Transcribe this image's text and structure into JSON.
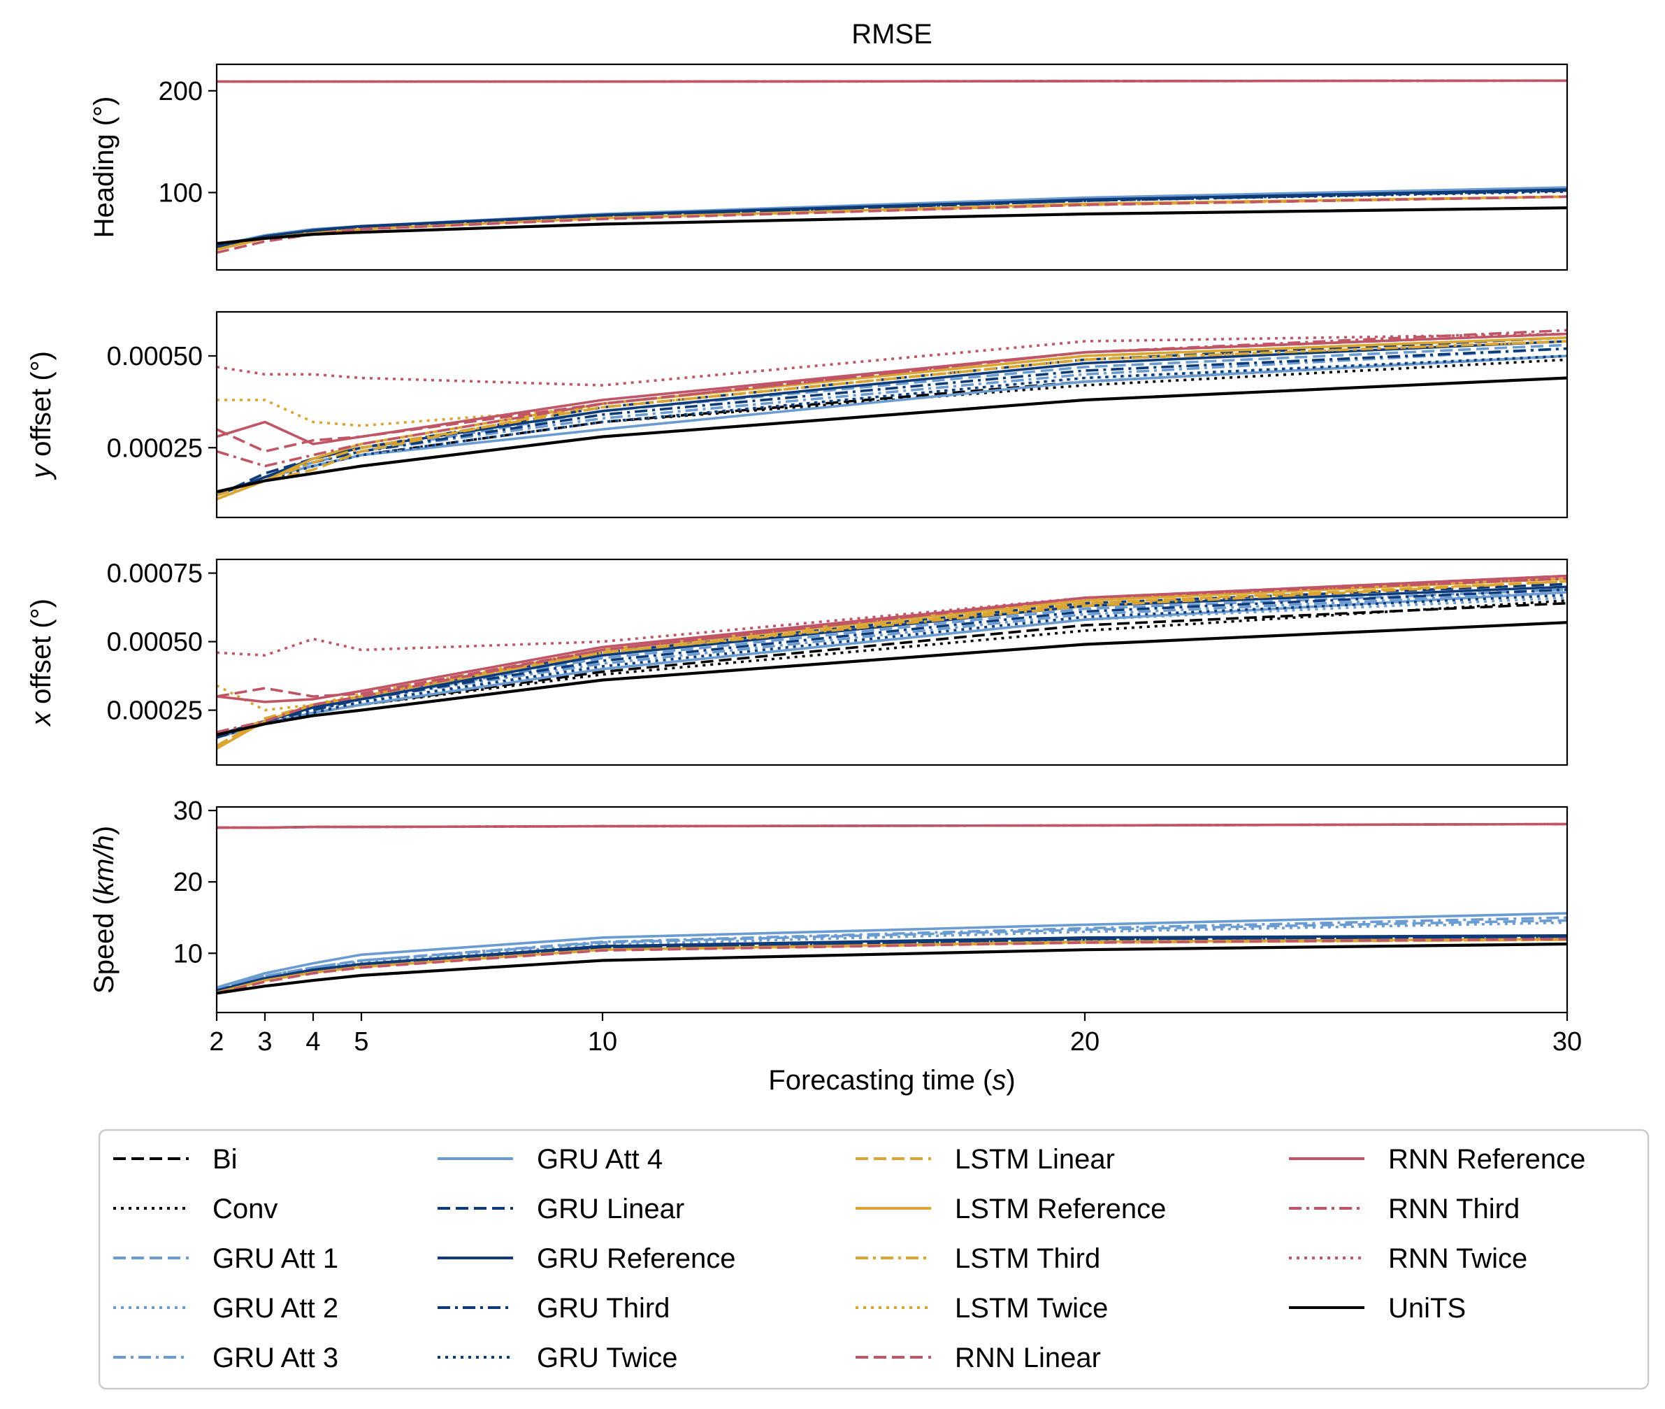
{
  "colors": {
    "black": "#000000",
    "gru_light": "#6a9bd1",
    "gru_dark": "#0e3a78",
    "lstm": "#dba532",
    "rnn": "#c05565"
  },
  "chart_data": {
    "type": "line",
    "title": "RMSE",
    "xlabel": "Forecasting time",
    "xlabel_unit": "s",
    "xlim": [
      2,
      30
    ],
    "xticks": [
      "2",
      "3",
      "4",
      "5",
      "10",
      "20",
      "30"
    ],
    "x": [
      2,
      3,
      4,
      5,
      10,
      20,
      30
    ],
    "legend_position": "bottom",
    "legend": [
      {
        "name": "Bi",
        "color": "#000000",
        "dash": "dashed"
      },
      {
        "name": "Conv",
        "color": "#000000",
        "dash": "dotted"
      },
      {
        "name": "GRU Att 1",
        "color": "#6a9bd1",
        "dash": "dashed"
      },
      {
        "name": "GRU Att 2",
        "color": "#6a9bd1",
        "dash": "dotted"
      },
      {
        "name": "GRU Att 3",
        "color": "#6a9bd1",
        "dash": "dashdot"
      },
      {
        "name": "GRU Att 4",
        "color": "#6a9bd1",
        "dash": "solid"
      },
      {
        "name": "GRU Linear",
        "color": "#0e3a78",
        "dash": "dashed"
      },
      {
        "name": "GRU Reference",
        "color": "#0e3a78",
        "dash": "solid"
      },
      {
        "name": "GRU Third",
        "color": "#0e3a78",
        "dash": "dashdot"
      },
      {
        "name": "GRU Twice",
        "color": "#0e3a78",
        "dash": "dotted"
      },
      {
        "name": "LSTM Linear",
        "color": "#dba532",
        "dash": "dashed"
      },
      {
        "name": "LSTM Reference",
        "color": "#dba532",
        "dash": "solid"
      },
      {
        "name": "LSTM Third",
        "color": "#dba532",
        "dash": "dashdot"
      },
      {
        "name": "LSTM Twice",
        "color": "#dba532",
        "dash": "dotted"
      },
      {
        "name": "RNN Linear",
        "color": "#c05565",
        "dash": "dashed"
      },
      {
        "name": "RNN Reference",
        "color": "#c05565",
        "dash": "solid"
      },
      {
        "name": "RNN Third",
        "color": "#c05565",
        "dash": "dashdot"
      },
      {
        "name": "RNN Twice",
        "color": "#c05565",
        "dash": "dotted"
      },
      {
        "name": "UniTS",
        "color": "#000000",
        "dash": "solid"
      }
    ],
    "panels": [
      {
        "ylabel": "Heading (°)",
        "ylim": [
          24,
          226
        ],
        "yticks": [
          {
            "v": 100,
            "label": "100"
          },
          {
            "v": 200,
            "label": "200"
          }
        ],
        "series": {
          "Bi": [
            45,
            55,
            61,
            64,
            75,
            88,
            96
          ],
          "Conv": [
            45,
            55,
            61,
            64,
            75,
            88,
            96
          ],
          "GRU Att 1": [
            47,
            57,
            63,
            66,
            77,
            92,
            102
          ],
          "GRU Att 2": [
            47,
            57,
            63,
            66,
            77,
            92,
            101
          ],
          "GRU Att 3": [
            47,
            57,
            63,
            66,
            77,
            92,
            102
          ],
          "GRU Att 4": [
            48,
            58,
            64,
            67,
            79,
            95,
            105
          ],
          "GRU Linear": [
            46,
            57,
            62,
            66,
            77,
            92,
            102
          ],
          "GRU Reference": [
            47,
            57,
            63,
            67,
            78,
            93,
            103
          ],
          "GRU Third": [
            46,
            57,
            62,
            66,
            77,
            92,
            102
          ],
          "GRU Twice": [
            46,
            56,
            62,
            66,
            77,
            92,
            101
          ],
          "LSTM Linear": [
            44,
            55,
            60,
            64,
            75,
            88,
            96
          ],
          "LSTM Reference": [
            44,
            55,
            60,
            64,
            75,
            89,
            96
          ],
          "LSTM Third": [
            44,
            55,
            60,
            64,
            75,
            88,
            96
          ],
          "LSTM Twice": [
            44,
            55,
            60,
            64,
            75,
            88,
            96
          ],
          "RNN Linear": [
            41,
            52,
            59,
            64,
            74,
            88,
            96
          ],
          "RNN Reference": [
            209,
            209,
            209,
            209,
            209,
            209.5,
            210
          ],
          "RNN Third": [
            209,
            209,
            209,
            209,
            209,
            209.5,
            210
          ],
          "RNN Twice": [
            209,
            209,
            209,
            209,
            209,
            209.5,
            210
          ],
          "UniTS": [
            50,
            55,
            59,
            61,
            69,
            79,
            85
          ]
        }
      },
      {
        "ylabel": "y offset (°)",
        "ylabel_italic_prefix": "y",
        "ylim": [
          6e-05,
          0.00062
        ],
        "yticks": [
          {
            "v": 0.00025,
            "label": "0.00025"
          },
          {
            "v": 0.0005,
            "label": "0.00050"
          }
        ],
        "series": {
          "Bi": [
            0.00012,
            0.00017,
            0.0002,
            0.00023,
            0.00032,
            0.00043,
            0.0005
          ],
          "Conv": [
            0.00012,
            0.00017,
            0.0002,
            0.00023,
            0.00032,
            0.00042,
            0.00049
          ],
          "GRU Att 1": [
            0.00012,
            0.00017,
            0.00021,
            0.00024,
            0.00035,
            0.00047,
            0.00053
          ],
          "GRU Att 2": [
            0.00012,
            0.00017,
            0.0002,
            0.00023,
            0.00032,
            0.00044,
            0.0005
          ],
          "GRU Att 3": [
            0.00012,
            0.00017,
            0.00021,
            0.00024,
            0.00033,
            0.00045,
            0.00052
          ],
          "GRU Att 4": [
            0.00012,
            0.00017,
            0.0002,
            0.00023,
            0.0003,
            0.00043,
            0.0005
          ],
          "GRU Linear": [
            0.00012,
            0.00018,
            0.00022,
            0.00025,
            0.00036,
            0.00049,
            0.00055
          ],
          "GRU Reference": [
            0.00012,
            0.00017,
            0.00022,
            0.00025,
            0.00035,
            0.00048,
            0.00054
          ],
          "GRU Third": [
            0.00012,
            0.00017,
            0.00021,
            0.00024,
            0.00034,
            0.00046,
            0.00052
          ],
          "GRU Twice": [
            0.00011,
            0.00016,
            0.0002,
            0.00023,
            0.00032,
            0.00044,
            0.0005
          ],
          "LSTM Linear": [
            0.00013,
            0.00016,
            0.00019,
            0.00024,
            0.00037,
            0.0005,
            0.00055
          ],
          "LSTM Reference": [
            0.00011,
            0.00016,
            0.00022,
            0.00026,
            0.00037,
            0.0005,
            0.00055
          ],
          "LSTM Third": [
            0.00012,
            0.00016,
            0.00021,
            0.00025,
            0.00036,
            0.00049,
            0.00054
          ],
          "LSTM Twice": [
            0.00038,
            0.00038,
            0.00032,
            0.00031,
            0.00036,
            0.00049,
            0.00054
          ],
          "RNN Linear": [
            0.0003,
            0.00024,
            0.00027,
            0.00028,
            0.00037,
            0.00051,
            0.00056
          ],
          "RNN Reference": [
            0.00028,
            0.00032,
            0.00026,
            0.00028,
            0.00038,
            0.00051,
            0.00056
          ],
          "RNN Third": [
            0.00024,
            0.0002,
            0.00023,
            0.00026,
            0.00037,
            0.00051,
            0.00057
          ],
          "RNN Twice": [
            0.00047,
            0.00045,
            0.00045,
            0.00044,
            0.00042,
            0.00054,
            0.00056
          ],
          "UniTS": [
            0.00013,
            0.00016,
            0.00018,
            0.0002,
            0.00028,
            0.00038,
            0.00044
          ]
        }
      },
      {
        "ylabel": "x offset (°)",
        "ylabel_italic_prefix": "x",
        "ylim": [
          5e-05,
          0.0008
        ],
        "yticks": [
          {
            "v": 0.00025,
            "label": "0.00025"
          },
          {
            "v": 0.0005,
            "label": "0.00050"
          },
          {
            "v": 0.00075,
            "label": "0.00075"
          }
        ],
        "series": {
          "Bi": [
            0.00015,
            0.0002,
            0.00024,
            0.00027,
            0.00039,
            0.00056,
            0.00064
          ],
          "Conv": [
            0.00015,
            0.0002,
            0.00024,
            0.00027,
            0.00038,
            0.00054,
            0.00065
          ],
          "GRU Att 1": [
            0.00016,
            0.00021,
            0.00026,
            0.00029,
            0.00044,
            0.00062,
            0.00069
          ],
          "GRU Att 2": [
            0.00016,
            0.0002,
            0.00025,
            0.00028,
            0.0004,
            0.00058,
            0.00066
          ],
          "GRU Att 3": [
            0.00016,
            0.00021,
            0.00025,
            0.00029,
            0.00042,
            0.0006,
            0.00068
          ],
          "GRU Att 4": [
            0.00015,
            0.0002,
            0.00024,
            0.00027,
            0.0004,
            0.00058,
            0.00068
          ],
          "GRU Linear": [
            0.00016,
            0.00021,
            0.00026,
            0.0003,
            0.00046,
            0.00064,
            0.00071
          ],
          "GRU Reference": [
            0.00016,
            0.00021,
            0.00026,
            0.00029,
            0.00045,
            0.00063,
            0.0007
          ],
          "GRU Third": [
            0.00015,
            0.00021,
            0.00025,
            0.00029,
            0.00043,
            0.00061,
            0.00069
          ],
          "GRU Twice": [
            0.00015,
            0.0002,
            0.00024,
            0.00028,
            0.00041,
            0.00059,
            0.00067
          ],
          "LSTM Linear": [
            0.00012,
            0.00022,
            0.00027,
            0.0003,
            0.00046,
            0.00064,
            0.00072
          ],
          "LSTM Reference": [
            0.00011,
            0.00021,
            0.00027,
            0.0003,
            0.00047,
            0.00065,
            0.00073
          ],
          "LSTM Third": [
            0.00012,
            0.00021,
            0.00027,
            0.0003,
            0.00046,
            0.00063,
            0.00072
          ],
          "LSTM Twice": [
            0.00034,
            0.00025,
            0.00027,
            0.00031,
            0.00047,
            0.00065,
            0.00073
          ],
          "RNN Linear": [
            0.0003,
            0.00033,
            0.0003,
            0.00031,
            0.00047,
            0.00066,
            0.00074
          ],
          "RNN Reference": [
            0.0003,
            0.00028,
            0.00029,
            0.00032,
            0.00048,
            0.00066,
            0.00074
          ],
          "RNN Third": [
            0.00017,
            0.00021,
            0.00027,
            0.0003,
            0.00047,
            0.00066,
            0.00073
          ],
          "RNN Twice": [
            0.00046,
            0.00045,
            0.00051,
            0.00047,
            0.0005,
            0.00066,
            0.00073
          ],
          "UniTS": [
            0.00016,
            0.0002,
            0.00023,
            0.00025,
            0.00036,
            0.00049,
            0.00057
          ]
        }
      },
      {
        "ylabel": "Speed (km/h)",
        "ylabel_italic_unit": "km/h",
        "ylim": [
          1.7,
          30.5
        ],
        "yticks": [
          {
            "v": 10,
            "label": "10"
          },
          {
            "v": 20,
            "label": "20"
          },
          {
            "v": 30,
            "label": "30"
          }
        ],
        "series": {
          "Bi": [
            4.5,
            6.2,
            7.3,
            8.2,
            10.6,
            11.6,
            12.0
          ],
          "Conv": [
            4.5,
            6.2,
            7.3,
            8.2,
            10.6,
            11.6,
            12.0
          ],
          "GRU Att 1": [
            5.0,
            6.8,
            8.0,
            9.0,
            11.5,
            13.3,
            14.6
          ],
          "GRU Att 2": [
            5.0,
            6.8,
            8.0,
            8.8,
            11.2,
            13.0,
            14.3
          ],
          "GRU Att 3": [
            5.0,
            6.8,
            8.0,
            9.0,
            11.6,
            13.5,
            15.0
          ],
          "GRU Att 4": [
            5.2,
            7.2,
            8.6,
            9.8,
            12.2,
            14.0,
            15.6
          ],
          "GRU Linear": [
            4.7,
            6.4,
            7.6,
            8.4,
            10.8,
            12.0,
            12.3
          ],
          "GRU Reference": [
            4.8,
            6.5,
            7.7,
            8.5,
            11.0,
            12.2,
            12.5
          ],
          "GRU Third": [
            4.7,
            6.4,
            7.6,
            8.4,
            10.8,
            12.0,
            12.3
          ],
          "GRU Twice": [
            4.7,
            6.4,
            7.6,
            8.4,
            10.7,
            11.9,
            12.2
          ],
          "LSTM Linear": [
            4.5,
            6.2,
            7.3,
            8.1,
            10.5,
            11.5,
            11.9
          ],
          "LSTM Reference": [
            4.5,
            6.2,
            7.3,
            8.1,
            10.5,
            11.6,
            12.0
          ],
          "LSTM Third": [
            4.5,
            6.2,
            7.3,
            8.1,
            10.5,
            11.5,
            11.9
          ],
          "LSTM Twice": [
            4.5,
            6.2,
            7.3,
            8.1,
            10.5,
            11.5,
            11.9
          ],
          "RNN Linear": [
            4.4,
            6.0,
            7.2,
            8.0,
            10.4,
            11.5,
            12.0
          ],
          "RNN Reference": [
            27.6,
            27.6,
            27.7,
            27.7,
            27.8,
            27.9,
            28.1
          ],
          "RNN Third": [
            27.6,
            27.6,
            27.7,
            27.7,
            27.8,
            27.9,
            28.1
          ],
          "RNN Twice": [
            27.6,
            27.6,
            27.7,
            27.7,
            27.8,
            27.9,
            28.1
          ],
          "UniTS": [
            4.4,
            5.4,
            6.2,
            6.9,
            9.0,
            10.5,
            11.3
          ]
        }
      }
    ]
  }
}
